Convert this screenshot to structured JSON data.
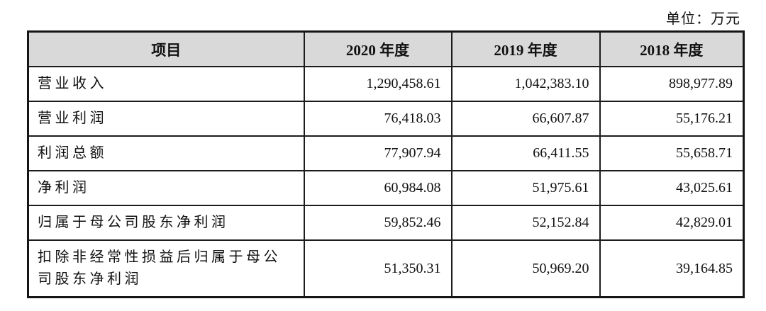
{
  "unit_label": "单位：万元",
  "colors": {
    "header_bg": "#d9d9d9",
    "border": "#1c1c1c",
    "text": "#111111",
    "page_bg": "#ffffff"
  },
  "table": {
    "headers": [
      "项目",
      "2020 年度",
      "2019 年度",
      "2018 年度"
    ],
    "rows": [
      {
        "item": "营业收入",
        "y2020": "1,290,458.61",
        "y2019": "1,042,383.10",
        "y2018": "898,977.89"
      },
      {
        "item": "营业利润",
        "y2020": "76,418.03",
        "y2019": "66,607.87",
        "y2018": "55,176.21"
      },
      {
        "item": "利润总额",
        "y2020": "77,907.94",
        "y2019": "66,411.55",
        "y2018": "55,658.71"
      },
      {
        "item": "净利润",
        "y2020": "60,984.08",
        "y2019": "51,975.61",
        "y2018": "43,025.61"
      },
      {
        "item": "归属于母公司股东净利润",
        "y2020": "59,852.46",
        "y2019": "52,152.84",
        "y2018": "42,829.01"
      },
      {
        "item": "扣除非经常性损益后归属于母公司股东净利润",
        "y2020": "51,350.31",
        "y2019": "50,969.20",
        "y2018": "39,164.85"
      }
    ]
  }
}
